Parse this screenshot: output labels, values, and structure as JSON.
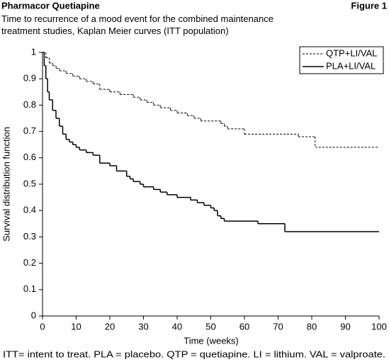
{
  "header": {
    "title": "Pharmacor Quetiapine",
    "figure": "Figure 1"
  },
  "chart_data": {
    "type": "step",
    "title": "Time to recurrence of a mood event for the combined maintenance treatment studies, Kaplan Meier curves (ITT population)",
    "xlabel": "Time (weeks)",
    "ylabel": "Survival distribution function",
    "xlim": [
      0,
      100
    ],
    "ylim": [
      0,
      1
    ],
    "xticks": [
      0,
      10,
      20,
      30,
      40,
      50,
      60,
      70,
      80,
      90,
      100
    ],
    "yticks": [
      0,
      0.1,
      0.2,
      0.3,
      0.4,
      0.5,
      0.6,
      0.7,
      0.8,
      0.9,
      1
    ],
    "legend": "upper right",
    "series": [
      {
        "name": "QTP+LI/VAL",
        "color": "#000000",
        "dash": true,
        "x": [
          0,
          1,
          2,
          3,
          4,
          5,
          7,
          9,
          11,
          13,
          15,
          17,
          20,
          23,
          27,
          29,
          31,
          33,
          35,
          38,
          40,
          43,
          45,
          47,
          53,
          54,
          55,
          60,
          76,
          81,
          100
        ],
        "values": [
          1.0,
          0.98,
          0.96,
          0.95,
          0.94,
          0.93,
          0.92,
          0.91,
          0.9,
          0.89,
          0.88,
          0.86,
          0.85,
          0.84,
          0.83,
          0.82,
          0.81,
          0.8,
          0.79,
          0.78,
          0.77,
          0.76,
          0.75,
          0.74,
          0.73,
          0.72,
          0.71,
          0.69,
          0.68,
          0.64,
          0.64
        ]
      },
      {
        "name": "PLA+LI/VAL",
        "color": "#000000",
        "dash": false,
        "x": [
          0,
          0.5,
          1,
          1.5,
          2,
          3,
          4,
          5,
          6,
          7,
          8,
          9,
          10,
          11,
          13,
          15,
          17,
          20,
          22,
          25,
          26,
          27,
          29,
          30,
          33,
          35,
          37,
          40,
          44,
          46,
          48,
          50,
          51,
          52,
          53,
          54,
          64,
          72,
          100
        ],
        "values": [
          1.0,
          0.95,
          0.9,
          0.85,
          0.82,
          0.78,
          0.75,
          0.72,
          0.69,
          0.67,
          0.66,
          0.65,
          0.64,
          0.63,
          0.62,
          0.61,
          0.58,
          0.57,
          0.55,
          0.53,
          0.52,
          0.51,
          0.5,
          0.49,
          0.48,
          0.47,
          0.46,
          0.45,
          0.44,
          0.43,
          0.42,
          0.41,
          0.4,
          0.38,
          0.37,
          0.36,
          0.35,
          0.32,
          0.32
        ]
      }
    ],
    "footnote": "ITT= intent to treat. PLA = placebo. QTP = quetiapine. LI = lithium. VAL = valproate."
  }
}
